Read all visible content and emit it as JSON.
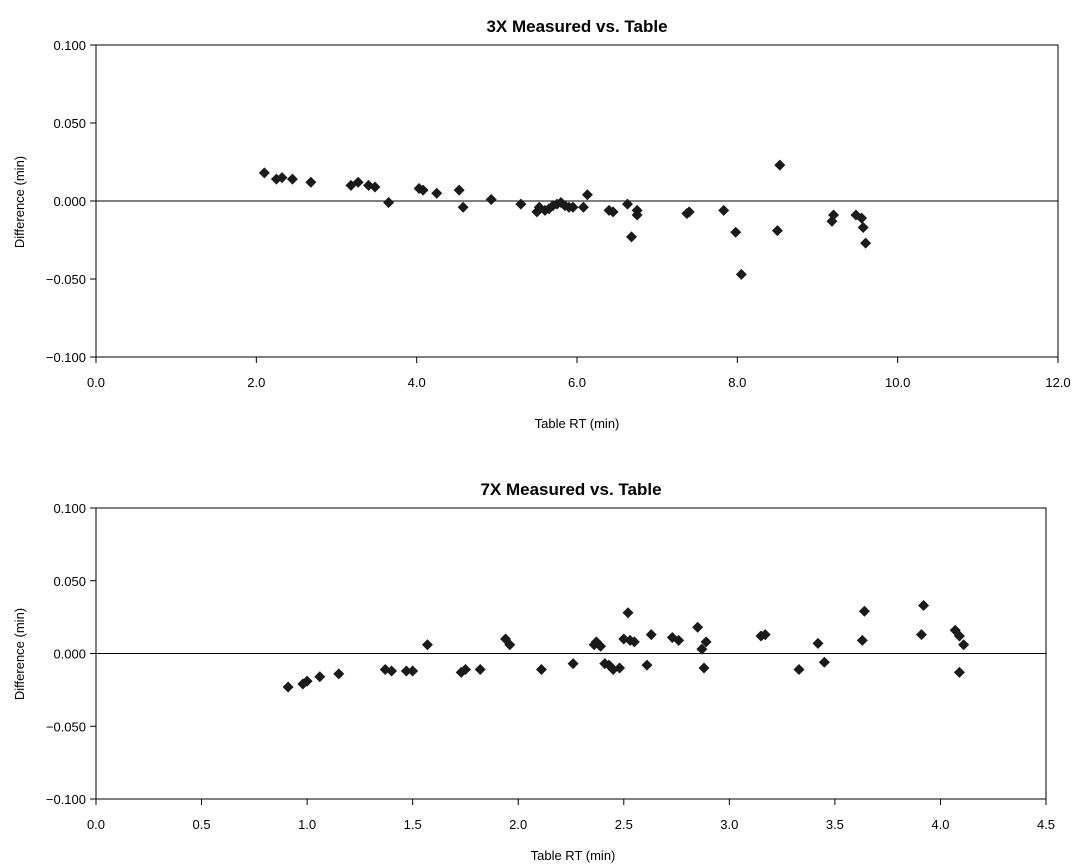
{
  "colors": {
    "marker": "#1a1a1a",
    "axis": "#000000",
    "zero_line": "#000000"
  },
  "chart_data": [
    {
      "type": "scatter",
      "title": "3X Measured vs. Table",
      "xlabel": "Table RT (min)",
      "ylabel": "Difference (min)",
      "xlim": [
        0.0,
        12.0
      ],
      "ylim": [
        -0.1,
        0.1
      ],
      "xticks": [
        "0.0",
        "2.0",
        "4.0",
        "6.0",
        "8.0",
        "10.0",
        "12.0"
      ],
      "yticks": [
        "0.100",
        "0.050",
        "0.000",
        "−0.050",
        "−0.100"
      ],
      "grid": false,
      "marker": "diamond",
      "points": [
        [
          2.1,
          0.018
        ],
        [
          2.25,
          0.014
        ],
        [
          2.32,
          0.015
        ],
        [
          2.45,
          0.014
        ],
        [
          2.68,
          0.012
        ],
        [
          3.18,
          0.01
        ],
        [
          3.27,
          0.012
        ],
        [
          3.4,
          0.01
        ],
        [
          3.48,
          0.009
        ],
        [
          3.65,
          -0.001
        ],
        [
          4.03,
          0.008
        ],
        [
          4.08,
          0.007
        ],
        [
          4.25,
          0.005
        ],
        [
          4.53,
          0.007
        ],
        [
          4.58,
          -0.004
        ],
        [
          4.93,
          0.001
        ],
        [
          5.3,
          -0.002
        ],
        [
          5.5,
          -0.007
        ],
        [
          5.53,
          -0.004
        ],
        [
          5.6,
          -0.006
        ],
        [
          5.65,
          -0.005
        ],
        [
          5.7,
          -0.003
        ],
        [
          5.75,
          -0.002
        ],
        [
          5.8,
          -0.001
        ],
        [
          5.85,
          -0.003
        ],
        [
          5.9,
          -0.004
        ],
        [
          5.95,
          -0.004
        ],
        [
          6.08,
          -0.004
        ],
        [
          6.13,
          0.004
        ],
        [
          6.4,
          -0.006
        ],
        [
          6.45,
          -0.007
        ],
        [
          6.63,
          -0.002
        ],
        [
          6.68,
          -0.023
        ],
        [
          6.75,
          -0.006
        ],
        [
          6.75,
          -0.009
        ],
        [
          7.37,
          -0.008
        ],
        [
          7.4,
          -0.007
        ],
        [
          7.83,
          -0.006
        ],
        [
          7.98,
          -0.02
        ],
        [
          8.05,
          -0.047
        ],
        [
          8.5,
          -0.019
        ],
        [
          8.53,
          0.023
        ],
        [
          9.18,
          -0.013
        ],
        [
          9.2,
          -0.009
        ],
        [
          9.48,
          -0.009
        ],
        [
          9.55,
          -0.011
        ],
        [
          9.57,
          -0.017
        ],
        [
          9.6,
          -0.027
        ]
      ]
    },
    {
      "type": "scatter",
      "title": "7X Measured vs. Table",
      "xlabel": "Table RT (min)",
      "ylabel": "Difference (min)",
      "xlim": [
        0.0,
        4.5
      ],
      "ylim": [
        -0.1,
        0.1
      ],
      "xticks": [
        "0.0",
        "0.5",
        "1.0",
        "1.5",
        "2.0",
        "2.5",
        "3.0",
        "3.5",
        "4.0",
        "4.5"
      ],
      "yticks": [
        "0.100",
        "0.050",
        "0.000",
        "−0.050",
        "−0.100"
      ],
      "grid": false,
      "marker": "diamond",
      "points": [
        [
          0.91,
          -0.023
        ],
        [
          0.98,
          -0.021
        ],
        [
          1.0,
          -0.019
        ],
        [
          1.06,
          -0.016
        ],
        [
          1.15,
          -0.014
        ],
        [
          1.37,
          -0.011
        ],
        [
          1.4,
          -0.012
        ],
        [
          1.47,
          -0.012
        ],
        [
          1.5,
          -0.012
        ],
        [
          1.57,
          0.006
        ],
        [
          1.73,
          -0.013
        ],
        [
          1.75,
          -0.011
        ],
        [
          1.82,
          -0.011
        ],
        [
          1.94,
          0.01
        ],
        [
          1.96,
          0.006
        ],
        [
          2.11,
          -0.011
        ],
        [
          2.26,
          -0.007
        ],
        [
          2.36,
          0.006
        ],
        [
          2.37,
          0.008
        ],
        [
          2.39,
          0.005
        ],
        [
          2.41,
          -0.007
        ],
        [
          2.43,
          -0.008
        ],
        [
          2.45,
          -0.011
        ],
        [
          2.48,
          -0.01
        ],
        [
          2.5,
          0.01
        ],
        [
          2.52,
          0.028
        ],
        [
          2.53,
          0.009
        ],
        [
          2.55,
          0.008
        ],
        [
          2.61,
          -0.008
        ],
        [
          2.63,
          0.013
        ],
        [
          2.73,
          0.011
        ],
        [
          2.76,
          0.009
        ],
        [
          2.85,
          0.018
        ],
        [
          2.87,
          0.003
        ],
        [
          2.88,
          -0.01
        ],
        [
          2.89,
          0.008
        ],
        [
          3.15,
          0.012
        ],
        [
          3.17,
          0.013
        ],
        [
          3.33,
          -0.011
        ],
        [
          3.42,
          0.007
        ],
        [
          3.45,
          -0.006
        ],
        [
          3.63,
          0.009
        ],
        [
          3.64,
          0.029
        ],
        [
          3.91,
          0.013
        ],
        [
          3.92,
          0.033
        ],
        [
          4.07,
          0.016
        ],
        [
          4.09,
          0.012
        ],
        [
          4.09,
          -0.013
        ],
        [
          4.11,
          0.006
        ]
      ]
    }
  ]
}
